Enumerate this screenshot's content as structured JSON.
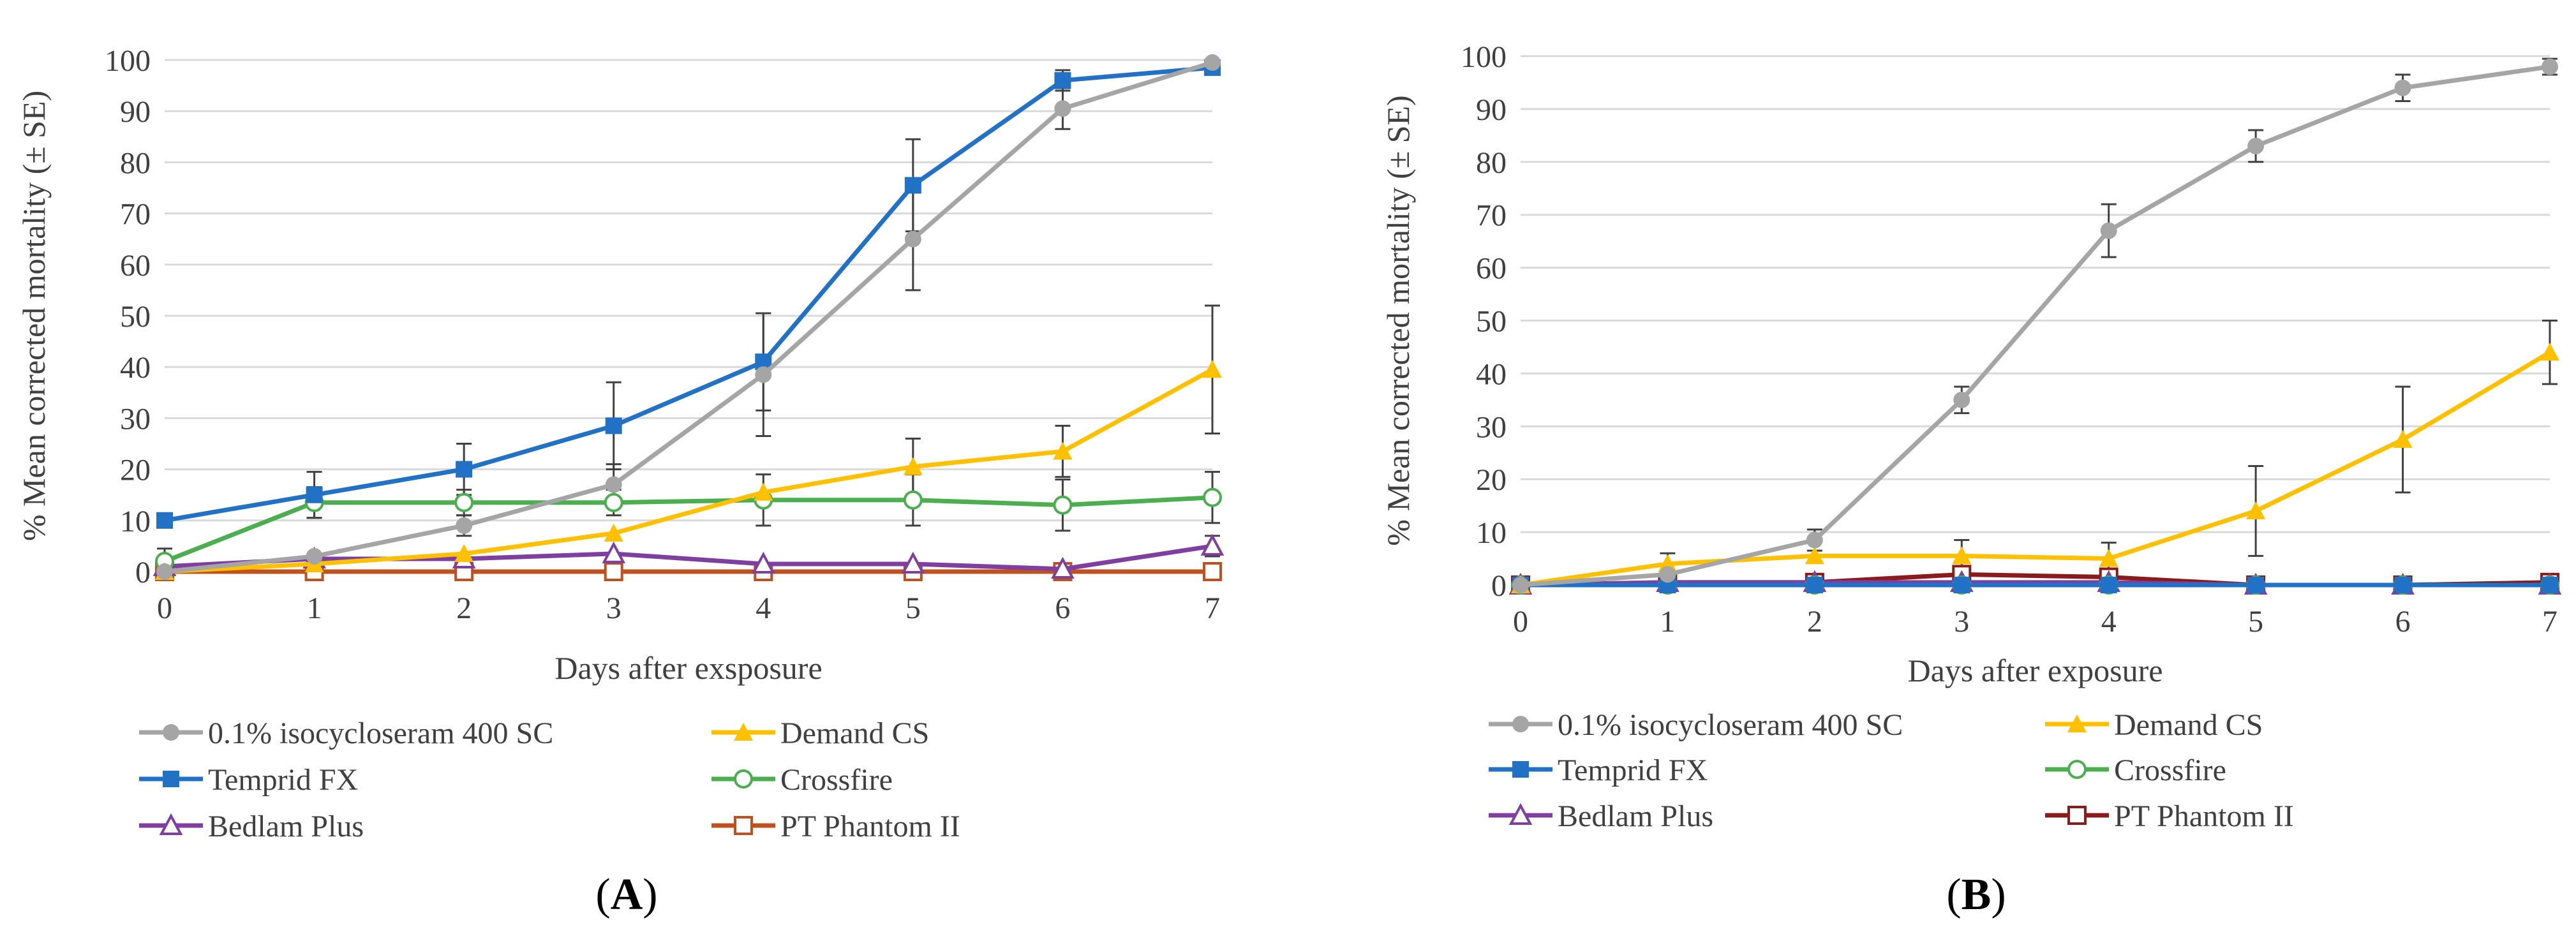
{
  "figure": {
    "panel_labels": [
      "A",
      "B"
    ]
  },
  "chart_data": [
    {
      "type": "line",
      "panel_label": "A",
      "title": "",
      "xlabel": "Days after exsposure",
      "ylabel": "% Mean corrected mortality (± SE)",
      "x": [
        0,
        1,
        2,
        3,
        4,
        5,
        6,
        7
      ],
      "xlim": [
        0,
        7
      ],
      "ylim": [
        0,
        100
      ],
      "yticks": [
        0,
        10,
        20,
        30,
        40,
        50,
        60,
        70,
        80,
        90,
        100
      ],
      "grid": true,
      "legend_position": "bottom",
      "series": [
        {
          "name": "0.1% isocycloseram 400 SC",
          "color": "#A5A5A5",
          "marker": "circle-filled",
          "values": [
            0,
            3,
            9,
            17,
            38.5,
            65,
            90.5,
            99.5
          ],
          "error": [
            0,
            0,
            2,
            4,
            12,
            10,
            4,
            0
          ]
        },
        {
          "name": "Demand CS",
          "color": "#FFC000",
          "marker": "triangle-filled",
          "values": [
            0,
            1.5,
            3.5,
            7.5,
            15.5,
            20.5,
            23.5,
            39.5
          ],
          "error": [
            0,
            0,
            0,
            0,
            0,
            5.5,
            5,
            12.5
          ]
        },
        {
          "name": "Temprid FX",
          "color": "#2171C7",
          "marker": "square-filled",
          "values": [
            10,
            15,
            20,
            28.5,
            41,
            75.5,
            96,
            98.5
          ],
          "error": [
            0,
            4.5,
            5,
            8.5,
            9.5,
            9,
            2,
            0
          ]
        },
        {
          "name": "Crossfire",
          "color": "#4BAE4F",
          "marker": "circle-open",
          "values": [
            2,
            13.5,
            13.5,
            13.5,
            14,
            14,
            13,
            14.5
          ],
          "error": [
            2.5,
            3,
            2.5,
            2.5,
            5,
            5,
            5,
            5
          ]
        },
        {
          "name": "Bedlam Plus",
          "color": "#7F3FA0",
          "marker": "triangle-open",
          "values": [
            1,
            2.5,
            2.5,
            3.5,
            1.5,
            1.5,
            0.5,
            5
          ],
          "error": [
            0,
            0,
            0,
            0,
            0,
            0,
            0,
            2
          ]
        },
        {
          "name": "PT Phantom II",
          "color": "#C0501E",
          "marker": "square-open",
          "values": [
            0,
            0,
            0,
            0,
            0,
            0,
            0,
            0
          ],
          "error": [
            0,
            0,
            0,
            0,
            0,
            0,
            0,
            0
          ]
        }
      ]
    },
    {
      "type": "line",
      "panel_label": "B",
      "title": "",
      "xlabel": "Days after exposure",
      "ylabel": "% Mean corrected mortality (± SE)",
      "x": [
        0,
        1,
        2,
        3,
        4,
        5,
        6,
        7
      ],
      "xlim": [
        0,
        7
      ],
      "ylim": [
        0,
        100
      ],
      "yticks": [
        0,
        10,
        20,
        30,
        40,
        50,
        60,
        70,
        80,
        90,
        100
      ],
      "grid": true,
      "legend_position": "bottom",
      "series": [
        {
          "name": "0.1% isocycloseram 400 SC",
          "color": "#A5A5A5",
          "marker": "circle-filled",
          "values": [
            0,
            2,
            8.5,
            35,
            67,
            83,
            94,
            98
          ],
          "error": [
            0,
            0,
            2,
            2.5,
            5,
            3,
            2.5,
            1.5
          ]
        },
        {
          "name": "Demand CS",
          "color": "#FFC000",
          "marker": "triangle-filled",
          "values": [
            0,
            4,
            5.5,
            5.5,
            5,
            14,
            27.5,
            44
          ],
          "error": [
            0,
            2,
            0,
            3,
            3,
            8.5,
            10,
            6
          ]
        },
        {
          "name": "Temprid FX",
          "color": "#2171C7",
          "marker": "square-filled",
          "values": [
            0,
            0,
            0,
            0,
            0,
            0,
            0,
            0
          ],
          "error": [
            0,
            0,
            0,
            0,
            0,
            0,
            0,
            0
          ]
        },
        {
          "name": "Crossfire",
          "color": "#4BAE4F",
          "marker": "circle-open",
          "values": [
            0,
            0,
            0,
            0,
            0,
            0,
            0,
            0
          ],
          "error": [
            0,
            0,
            0,
            0,
            0,
            0,
            0,
            0
          ]
        },
        {
          "name": "Bedlam Plus",
          "color": "#7F3FA0",
          "marker": "triangle-open",
          "values": [
            0,
            0.5,
            0.5,
            0.5,
            0.5,
            0,
            0,
            0
          ],
          "error": [
            0,
            0,
            0,
            0,
            0,
            0,
            0,
            0
          ]
        },
        {
          "name": "PT Phantom II",
          "color": "#8B1A1A",
          "marker": "square-open",
          "values": [
            0,
            0.5,
            0.5,
            2,
            1.5,
            0,
            0,
            0.5
          ],
          "error": [
            0,
            0,
            0,
            0,
            0,
            0,
            0,
            0
          ]
        }
      ]
    }
  ]
}
